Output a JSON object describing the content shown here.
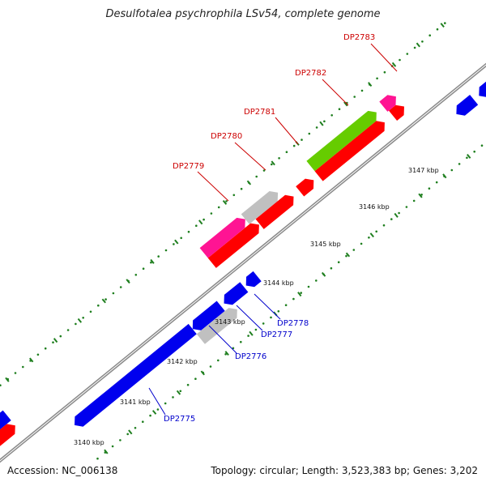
{
  "title": "Desulfotalea psychrophila LSv54, complete genome",
  "footer": {
    "accession": "Accession: NC_006138",
    "summary": "Topology: circular; Length: 3,523,383 bp; Genes: 3,202"
  },
  "colors": {
    "backbone": "#8a8a8a",
    "tick": "#1f7f1f",
    "forward_strand": "#ff0000",
    "reverse_strand": "#0000ee",
    "highlight_pink": "#ff1493",
    "highlight_grey": "#c0c0c0",
    "highlight_green": "#66cc00",
    "label_forward": "#cc0000",
    "label_reverse": "#0000cc"
  },
  "scale_labels": [
    "3140 kbp",
    "3141 kbp",
    "3142 kbp",
    "3143 kbp",
    "3144 kbp",
    "3145 kbp",
    "3146 kbp",
    "3147 kbp"
  ],
  "gene_labels_forward": [
    "DP2779",
    "DP2780",
    "DP2781",
    "DP2782",
    "DP2783"
  ],
  "gene_labels_reverse": [
    "DP2775",
    "DP2776",
    "DP2777",
    "DP2778"
  ]
}
